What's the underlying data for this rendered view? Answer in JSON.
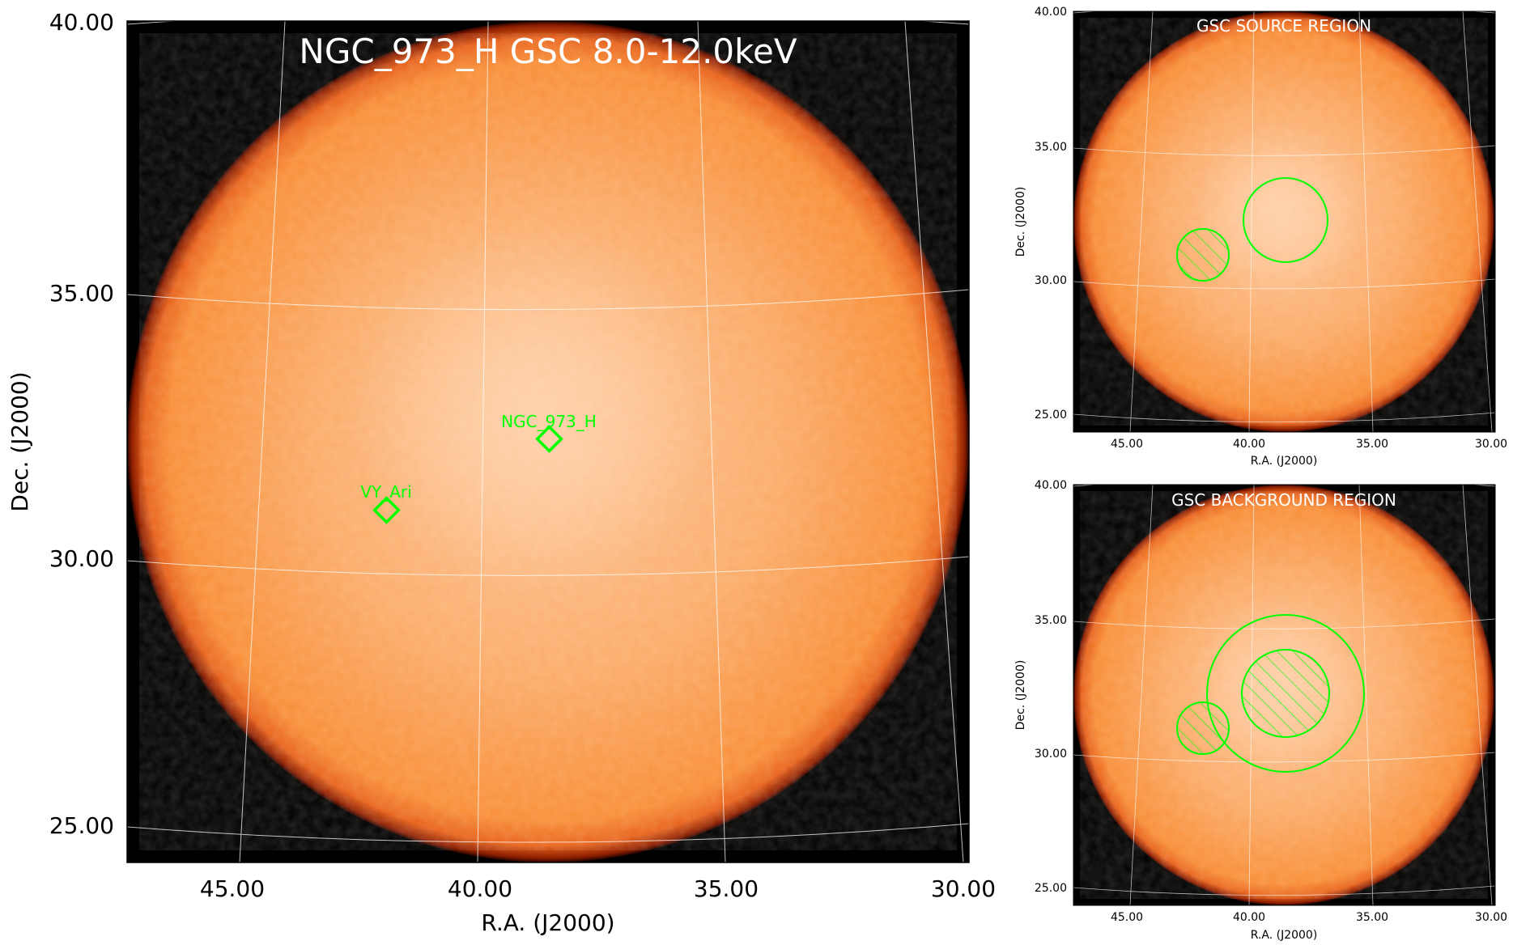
{
  "main_panel": {
    "title": "NGC_973_H GSC 8.0-12.0keV",
    "xlabel": "R.A. (J2000)",
    "ylabel": "Dec. (J2000)",
    "x_ticks": [
      "45.00",
      "40.00",
      "35.00",
      "30.00"
    ],
    "y_ticks": [
      "40.00",
      "35.00",
      "30.00",
      "25.00"
    ],
    "sources": [
      {
        "label": "NGC_973_H",
        "ra": 38.4,
        "dec": 32.2
      },
      {
        "label": "VY_Ari",
        "ra": 41.8,
        "dec": 30.9
      }
    ],
    "marker_color": "#00ff00"
  },
  "source_panel": {
    "title": "GSC SOURCE REGION",
    "xlabel": "R.A. (J2000)",
    "ylabel": "Dec. (J2000)",
    "x_ticks": [
      "45.00",
      "40.00",
      "35.00",
      "30.00"
    ],
    "y_ticks": [
      "40.00",
      "35.00",
      "30.00",
      "25.00"
    ]
  },
  "background_panel": {
    "title": "GSC BACKGROUND REGION",
    "xlabel": "R.A. (J2000)",
    "ylabel": "Dec. (J2000)",
    "x_ticks": [
      "45.00",
      "40.00",
      "35.00",
      "30.00"
    ],
    "y_ticks": [
      "40.00",
      "35.00",
      "30.00",
      "25.00"
    ]
  },
  "colors": {
    "disk_inner": "#fcc79a",
    "disk_mid": "#fba25a",
    "disk_edge": "#f07b20",
    "disk_rim": "#7a1a00",
    "sky_background": "#000000",
    "grid": "#ffffff",
    "region": "#00ff00"
  }
}
